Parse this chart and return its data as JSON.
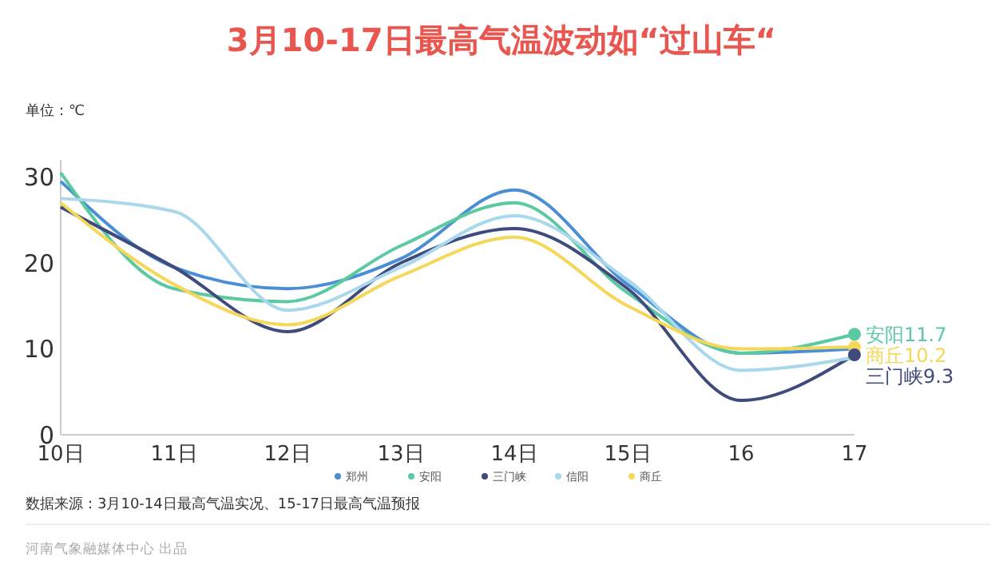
{
  "chart_data": {
    "type": "line",
    "title": "3月10-17日最高气温波动如“过山车“",
    "ylabel": "单位：℃",
    "categories": [
      "10日",
      "11日",
      "12日",
      "13日",
      "14日",
      "15日",
      "16",
      "17"
    ],
    "ylim": [
      0,
      32
    ],
    "yticks": [
      0,
      10,
      20,
      30
    ],
    "grid": false,
    "legend": "bottom",
    "line_style": "solid",
    "series": [
      {
        "name": "郑州",
        "color": "#4a8fd6",
        "values": [
          29.5,
          19.5,
          17,
          20.5,
          28.5,
          17.5,
          9.5,
          10
        ]
      },
      {
        "name": "安阳",
        "color": "#5ccaa0",
        "values": [
          30.5,
          17,
          15.5,
          22,
          27,
          16.5,
          9.5,
          11.7
        ],
        "value_labels": [
          null,
          null,
          null,
          null,
          null,
          null,
          null,
          "11.7"
        ]
      },
      {
        "name": "三门峡",
        "color": "#3f4b7c",
        "values": [
          26.5,
          19.5,
          12,
          20,
          24,
          17,
          4,
          9.3
        ],
        "value_labels": [
          null,
          null,
          null,
          null,
          null,
          null,
          null,
          "9.3"
        ]
      },
      {
        "name": "信阳",
        "color": "#a9d8ec",
        "values": [
          27.5,
          26,
          14.5,
          19.5,
          25.5,
          18,
          7.5,
          9
        ]
      },
      {
        "name": "商丘",
        "color": "#f5d75a",
        "values": [
          27,
          17.5,
          12.8,
          18.5,
          23,
          15,
          10,
          10.2
        ],
        "value_labels": [
          null,
          null,
          null,
          null,
          null,
          null,
          null,
          "10.2"
        ]
      }
    ],
    "annotations": [
      "数据来源：3月10-14日最高气温实况、15-17日最高气温预报",
      "河南气象融媒体中心 出品"
    ]
  }
}
